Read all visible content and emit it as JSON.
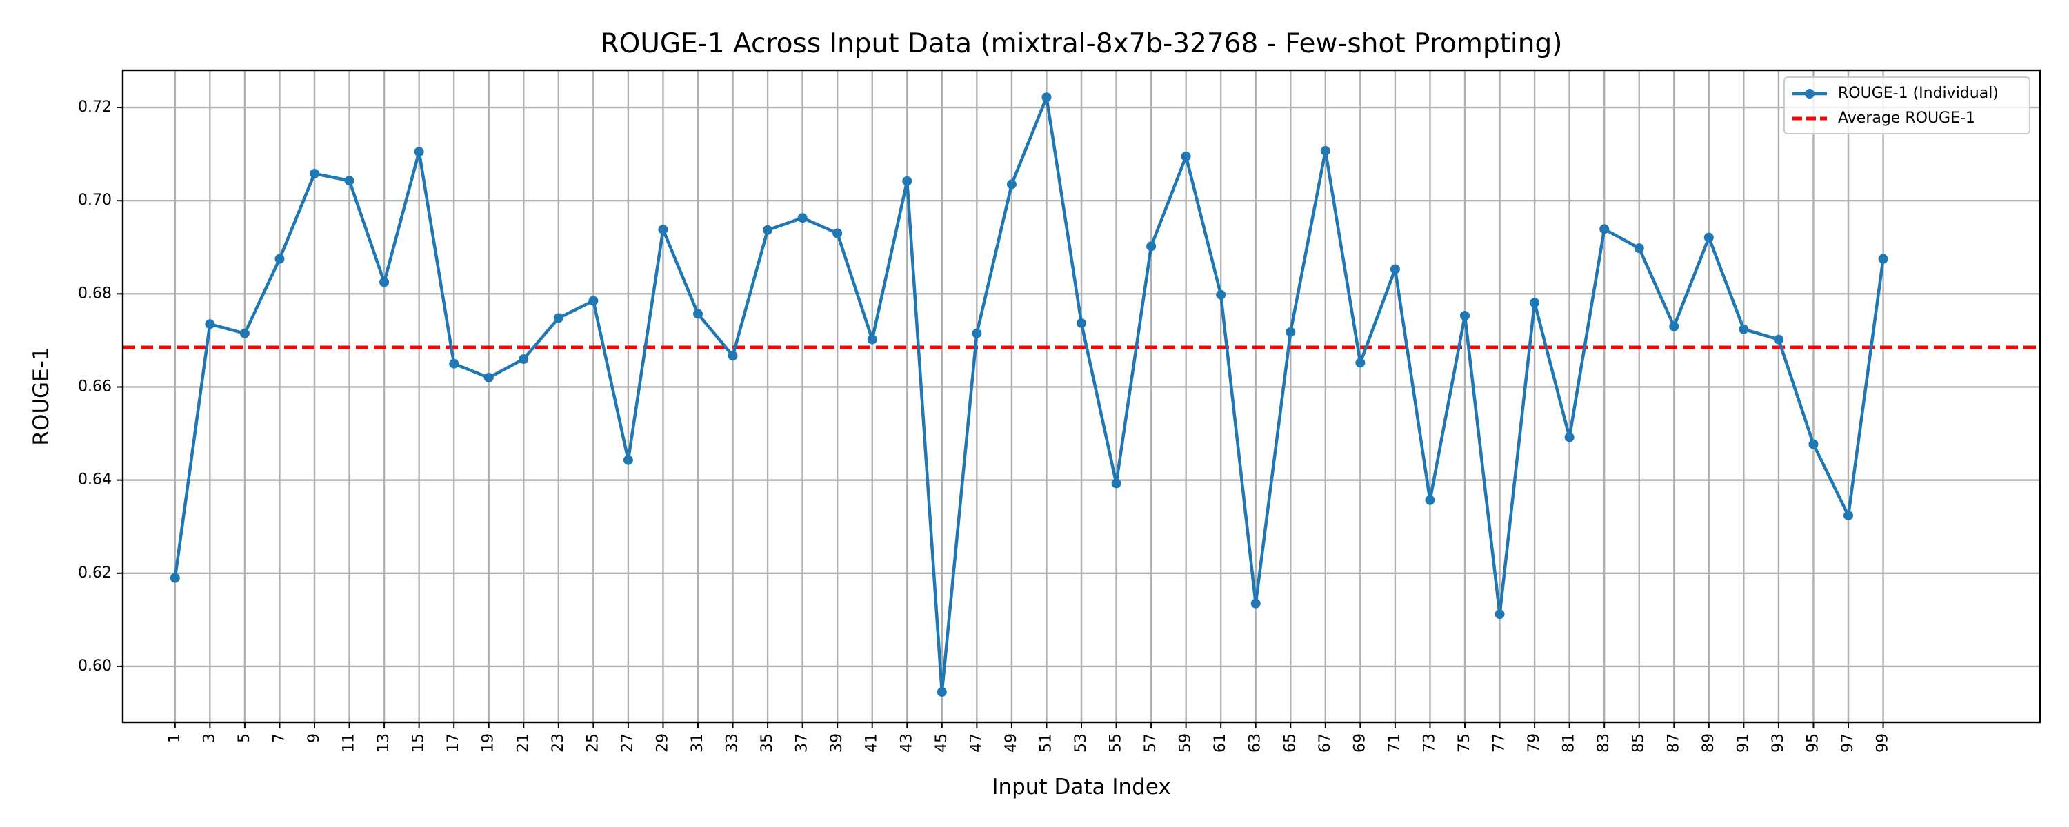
{
  "chart_data": {
    "type": "line",
    "title": "ROUGE-1 Across Input Data (mixtral-8x7b-32768 - Few-shot Prompting)",
    "xlabel": "Input Data Index",
    "ylabel": "ROUGE-1",
    "xlim": [
      -2,
      108
    ],
    "ylim": [
      0.588,
      0.728
    ],
    "y_ticks": [
      0.6,
      0.62,
      0.64,
      0.66,
      0.68,
      0.7,
      0.72
    ],
    "x_ticks": [
      1,
      3,
      5,
      7,
      9,
      11,
      13,
      15,
      17,
      19,
      21,
      23,
      25,
      27,
      29,
      31,
      33,
      35,
      37,
      39,
      41,
      43,
      45,
      47,
      49,
      51,
      53,
      55,
      57,
      59,
      61,
      63,
      65,
      67,
      69,
      71,
      73,
      75,
      77,
      79,
      81,
      83,
      85,
      87,
      89,
      91,
      93,
      95,
      97,
      99
    ],
    "grid": true,
    "legend_position": "upper-right",
    "series": [
      {
        "name": "ROUGE-1 (Individual)",
        "color": "#1f77b4",
        "style": "solid-with-markers",
        "x": [
          1,
          3,
          5,
          7,
          9,
          11,
          13,
          15,
          17,
          19,
          21,
          23,
          25,
          27,
          29,
          31,
          33,
          35,
          37,
          39,
          41,
          43,
          45,
          47,
          49,
          51,
          53,
          55,
          57,
          59,
          61,
          63,
          65,
          67,
          69,
          71,
          73,
          75,
          77,
          79,
          81,
          83,
          85,
          87,
          89,
          91,
          93,
          95,
          97,
          99
        ],
        "values": [
          0.619,
          0.6735,
          0.6715,
          0.6875,
          0.7058,
          0.7043,
          0.6825,
          0.7105,
          0.665,
          0.662,
          0.666,
          0.6748,
          0.6785,
          0.6443,
          0.6938,
          0.6757,
          0.6667,
          0.6937,
          0.6963,
          0.693,
          0.6702,
          0.7042,
          0.5945,
          0.6715,
          0.7035,
          0.7222,
          0.6737,
          0.6393,
          0.6902,
          0.7095,
          0.6798,
          0.6135,
          0.6718,
          0.7107,
          0.6652,
          0.6853,
          0.6357,
          0.6753,
          0.6112,
          0.6781,
          0.6492,
          0.6939,
          0.6898,
          0.673,
          0.6921,
          0.6724,
          0.6702,
          0.6477,
          0.6324,
          0.6875
        ]
      },
      {
        "name": "Average ROUGE-1",
        "color": "#ff0000",
        "style": "dashed",
        "value": 0.6685
      }
    ]
  }
}
